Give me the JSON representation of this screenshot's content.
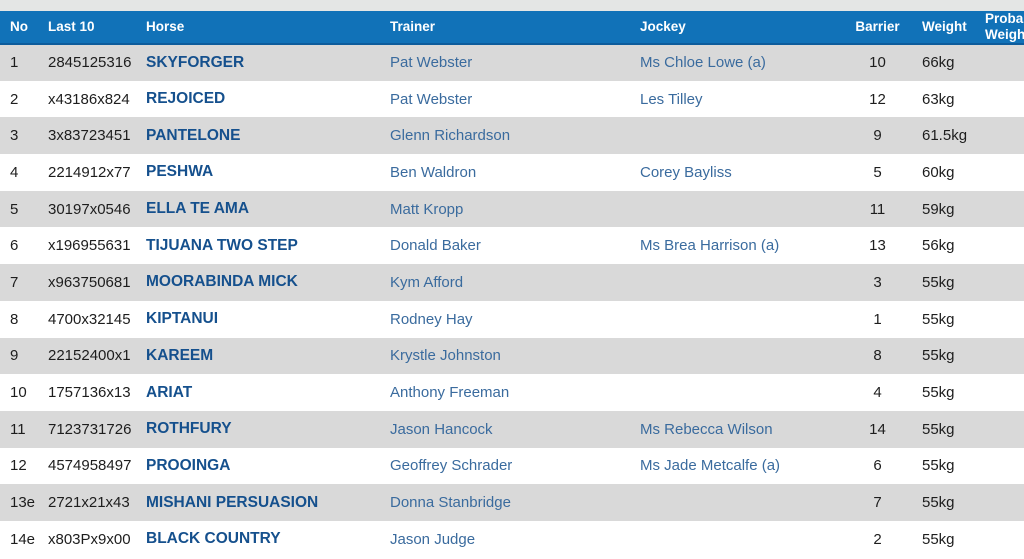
{
  "theme": {
    "header_bg": "#1172b8",
    "header_border": "#0d5c9c",
    "row_alt_bg": "#d9d9d9",
    "row_bg": "#ffffff",
    "top_strip": "#e4e6e5",
    "horse_link_color": "#15508d",
    "person_link_color": "#3a6b9e",
    "header_text_color": "#ffffff",
    "body_text_color": "#1d1d1d"
  },
  "table": {
    "columns": [
      {
        "key": "no",
        "label": "No"
      },
      {
        "key": "last10",
        "label": "Last 10"
      },
      {
        "key": "horse",
        "label": "Horse"
      },
      {
        "key": "trainer",
        "label": "Trainer"
      },
      {
        "key": "jockey",
        "label": "Jockey"
      },
      {
        "key": "barrier",
        "label": "Barrier"
      },
      {
        "key": "weight",
        "label": "Weight"
      },
      {
        "key": "probable_weight",
        "label": "Probable\nWeight"
      }
    ],
    "rows": [
      {
        "no": "1",
        "last10": "2845125316",
        "horse": "SKYFORGER",
        "trainer": "Pat Webster",
        "jockey": "Ms Chloe Lowe (a)",
        "barrier": "10",
        "weight": "66kg"
      },
      {
        "no": "2",
        "last10": "x43186x824",
        "horse": "REJOICED",
        "trainer": "Pat Webster",
        "jockey": "Les Tilley",
        "barrier": "12",
        "weight": "63kg"
      },
      {
        "no": "3",
        "last10": "3x83723451",
        "horse": "PANTELONE",
        "trainer": "Glenn Richardson",
        "jockey": "",
        "barrier": "9",
        "weight": "61.5kg"
      },
      {
        "no": "4",
        "last10": "2214912x77",
        "horse": "PESHWA",
        "trainer": "Ben Waldron",
        "jockey": "Corey Bayliss",
        "barrier": "5",
        "weight": "60kg"
      },
      {
        "no": "5",
        "last10": "30197x0546",
        "horse": "ELLA TE AMA",
        "trainer": "Matt Kropp",
        "jockey": "",
        "barrier": "11",
        "weight": "59kg"
      },
      {
        "no": "6",
        "last10": "x196955631",
        "horse": "TIJUANA TWO STEP",
        "trainer": "Donald Baker",
        "jockey": "Ms Brea Harrison (a)",
        "barrier": "13",
        "weight": "56kg"
      },
      {
        "no": "7",
        "last10": "x963750681",
        "horse": "MOORABINDA MICK",
        "trainer": "Kym Afford",
        "jockey": "",
        "barrier": "3",
        "weight": "55kg"
      },
      {
        "no": "8",
        "last10": "4700x32145",
        "horse": "KIPTANUI",
        "trainer": "Rodney Hay",
        "jockey": "",
        "barrier": "1",
        "weight": "55kg"
      },
      {
        "no": "9",
        "last10": "22152400x1",
        "horse": "KAREEM",
        "trainer": "Krystle Johnston",
        "jockey": "",
        "barrier": "8",
        "weight": "55kg"
      },
      {
        "no": "10",
        "last10": "1757136x13",
        "horse": "ARIAT",
        "trainer": "Anthony Freeman",
        "jockey": "",
        "barrier": "4",
        "weight": "55kg"
      },
      {
        "no": "11",
        "last10": "7123731726",
        "horse": "ROTHFURY",
        "trainer": "Jason Hancock",
        "jockey": "Ms Rebecca Wilson",
        "barrier": "14",
        "weight": "55kg"
      },
      {
        "no": "12",
        "last10": "4574958497",
        "horse": "PROOINGA",
        "trainer": "Geoffrey Schrader",
        "jockey": "Ms Jade Metcalfe (a)",
        "barrier": "6",
        "weight": "55kg"
      },
      {
        "no": "13e",
        "last10": "2721x21x43",
        "horse": "MISHANI PERSUASION",
        "trainer": "Donna Stanbridge",
        "jockey": "",
        "barrier": "7",
        "weight": "55kg"
      },
      {
        "no": "14e",
        "last10": "x803Px9x00",
        "horse": "BLACK COUNTRY",
        "trainer": "Jason Judge",
        "jockey": "",
        "barrier": "2",
        "weight": "55kg"
      }
    ]
  }
}
